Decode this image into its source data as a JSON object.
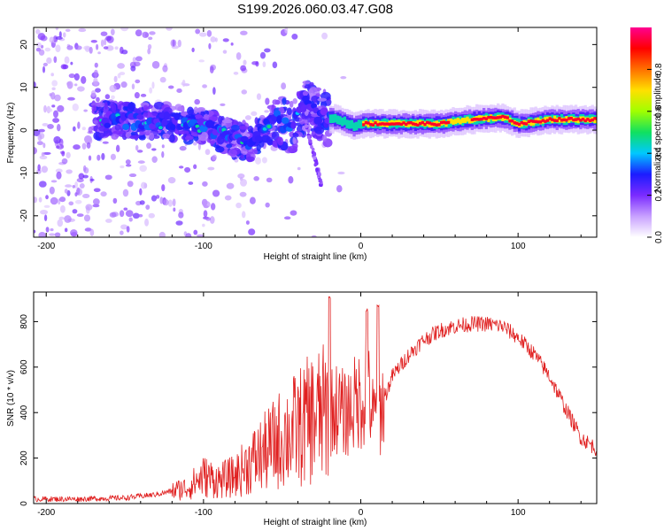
{
  "figure_title": "S199.2026.060.03.47.G08",
  "chart_data": [
    {
      "type": "heatmap",
      "title": "S199.2026.060.03.47.G08",
      "xlabel": "Height of straight line (km)",
      "ylabel": "Frequency (Hz)",
      "xlim": [
        -208,
        150
      ],
      "ylim": [
        -25,
        24
      ],
      "xticks": [
        -200,
        -100,
        0,
        100
      ],
      "yticks": [
        -20,
        -10,
        0,
        10,
        20
      ],
      "xtick_labels": [
        "-200",
        "-100",
        "0",
        "100"
      ],
      "ytick_labels": [
        "-20",
        "-10",
        "0",
        "10",
        "20"
      ],
      "colorbar": {
        "label": "Normalized spectral amplitude",
        "range": [
          0,
          1
        ],
        "ticks": [
          0.0,
          0.2,
          0.4,
          0.6,
          0.8
        ],
        "tick_labels": [
          "0.0",
          "0.2",
          "0.4",
          "0.6",
          "0.8"
        ],
        "colormap": [
          "#ffffff",
          "#c8a0ff",
          "#7a2bff",
          "#1c1cff",
          "#00c8ff",
          "#10e060",
          "#a0ff00",
          "#ffe000",
          "#ff7000",
          "#ff0000",
          "#ff0090"
        ]
      },
      "ridge": [
        {
          "x": -165,
          "f": 2.5
        },
        {
          "x": -140,
          "f": 2
        },
        {
          "x": -120,
          "f": 2
        },
        {
          "x": -100,
          "f": 1
        },
        {
          "x": -85,
          "f": -1.5
        },
        {
          "x": -70,
          "f": -3
        },
        {
          "x": -55,
          "f": 3
        },
        {
          "x": -45,
          "f": 0
        },
        {
          "x": -35,
          "f": 6
        },
        {
          "x": -25,
          "f": 3
        },
        {
          "x": -15,
          "f": 2.5
        },
        {
          "x": -5,
          "f": 1
        },
        {
          "x": 0,
          "f": 1.5
        },
        {
          "x": 20,
          "f": 1.5
        },
        {
          "x": 50,
          "f": 1.5
        },
        {
          "x": 70,
          "f": 2.5
        },
        {
          "x": 90,
          "f": 3
        },
        {
          "x": 100,
          "f": 1.5
        },
        {
          "x": 120,
          "f": 2.5
        },
        {
          "x": 150,
          "f": 2.5
        }
      ],
      "peak_band": {
        "x_start": 0,
        "x_end": 150,
        "f": 2,
        "amplitude": 0.95
      }
    },
    {
      "type": "line",
      "xlabel": "Height of straight line (km)",
      "ylabel": "SNR (10 * v/v)",
      "xlim": [
        -208,
        150
      ],
      "ylim": [
        0,
        930
      ],
      "xticks": [
        -200,
        -100,
        0,
        100
      ],
      "yticks": [
        0,
        200,
        400,
        600,
        800
      ],
      "xtick_labels": [
        "-200",
        "-100",
        "0",
        "100"
      ],
      "ytick_labels": [
        "0",
        "200",
        "400",
        "600",
        "800"
      ],
      "color": "#e02020",
      "series": [
        {
          "name": "SNR",
          "x": [
            -208,
            -180,
            -150,
            -130,
            -110,
            -100,
            -90,
            -80,
            -70,
            -60,
            -50,
            -40,
            -30,
            -20,
            -15,
            -10,
            -5,
            0,
            5,
            8,
            12,
            20,
            30,
            40,
            50,
            60,
            70,
            80,
            90,
            100,
            110,
            120,
            130,
            140,
            150
          ],
          "y": [
            20,
            20,
            25,
            40,
            70,
            120,
            100,
            120,
            180,
            230,
            290,
            330,
            380,
            400,
            420,
            390,
            430,
            460,
            480,
            370,
            400,
            560,
            650,
            720,
            760,
            780,
            790,
            790,
            780,
            730,
            660,
            560,
            420,
            290,
            240
          ]
        }
      ],
      "spikes": [
        {
          "x": -20,
          "y": 920
        },
        {
          "x": 4,
          "y": 860
        },
        {
          "x": 11,
          "y": 880
        }
      ]
    }
  ]
}
